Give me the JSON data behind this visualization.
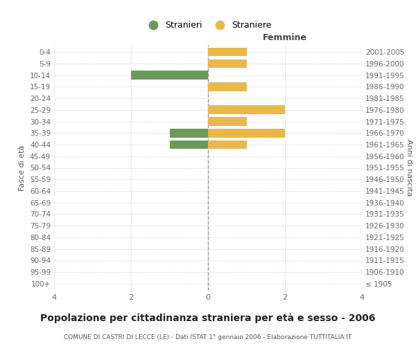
{
  "age_groups": [
    "100+",
    "95-99",
    "90-94",
    "85-89",
    "80-84",
    "75-79",
    "70-74",
    "65-69",
    "60-64",
    "55-59",
    "50-54",
    "45-49",
    "40-44",
    "35-39",
    "30-34",
    "25-29",
    "20-24",
    "15-19",
    "10-14",
    "5-9",
    "0-4"
  ],
  "birth_years": [
    "≤ 1905",
    "1906-1910",
    "1911-1915",
    "1916-1920",
    "1921-1925",
    "1926-1930",
    "1931-1935",
    "1936-1940",
    "1941-1945",
    "1946-1950",
    "1951-1955",
    "1956-1960",
    "1961-1965",
    "1966-1970",
    "1971-1975",
    "1976-1980",
    "1981-1985",
    "1986-1990",
    "1991-1995",
    "1996-2000",
    "2001-2005"
  ],
  "males": [
    0,
    0,
    0,
    0,
    0,
    0,
    0,
    0,
    0,
    0,
    0,
    0,
    -1,
    -1,
    0,
    0,
    0,
    0,
    -2,
    0,
    0
  ],
  "females": [
    0,
    0,
    0,
    0,
    0,
    0,
    0,
    0,
    0,
    0,
    0,
    0,
    1,
    2,
    1,
    2,
    0,
    1,
    0,
    1,
    1
  ],
  "male_color": "#6a9a5b",
  "female_color": "#e8b84b",
  "xlim": [
    -4,
    4
  ],
  "xlabel_right": "Femmine",
  "ylabel_left": "Fasce di età",
  "ylabel_right": "Anni di nascita",
  "title": "Popolazione per cittadinanza straniera per età e sesso - 2006",
  "subtitle": "COMUNE DI CASTRI DI LECCE (LE) - Dati ISTAT 1° gennaio 2006 - Elaborazione TUTTITALIA.IT",
  "legend_male": "Stranieri",
  "legend_female": "Straniere",
  "xticks": [
    -4,
    -2,
    0,
    2,
    4
  ],
  "xtick_labels": [
    "4",
    "2",
    "0",
    "2",
    "4"
  ],
  "bg_color": "#ffffff",
  "grid_color": "#d0d0d0",
  "center_line_color": "#999988"
}
